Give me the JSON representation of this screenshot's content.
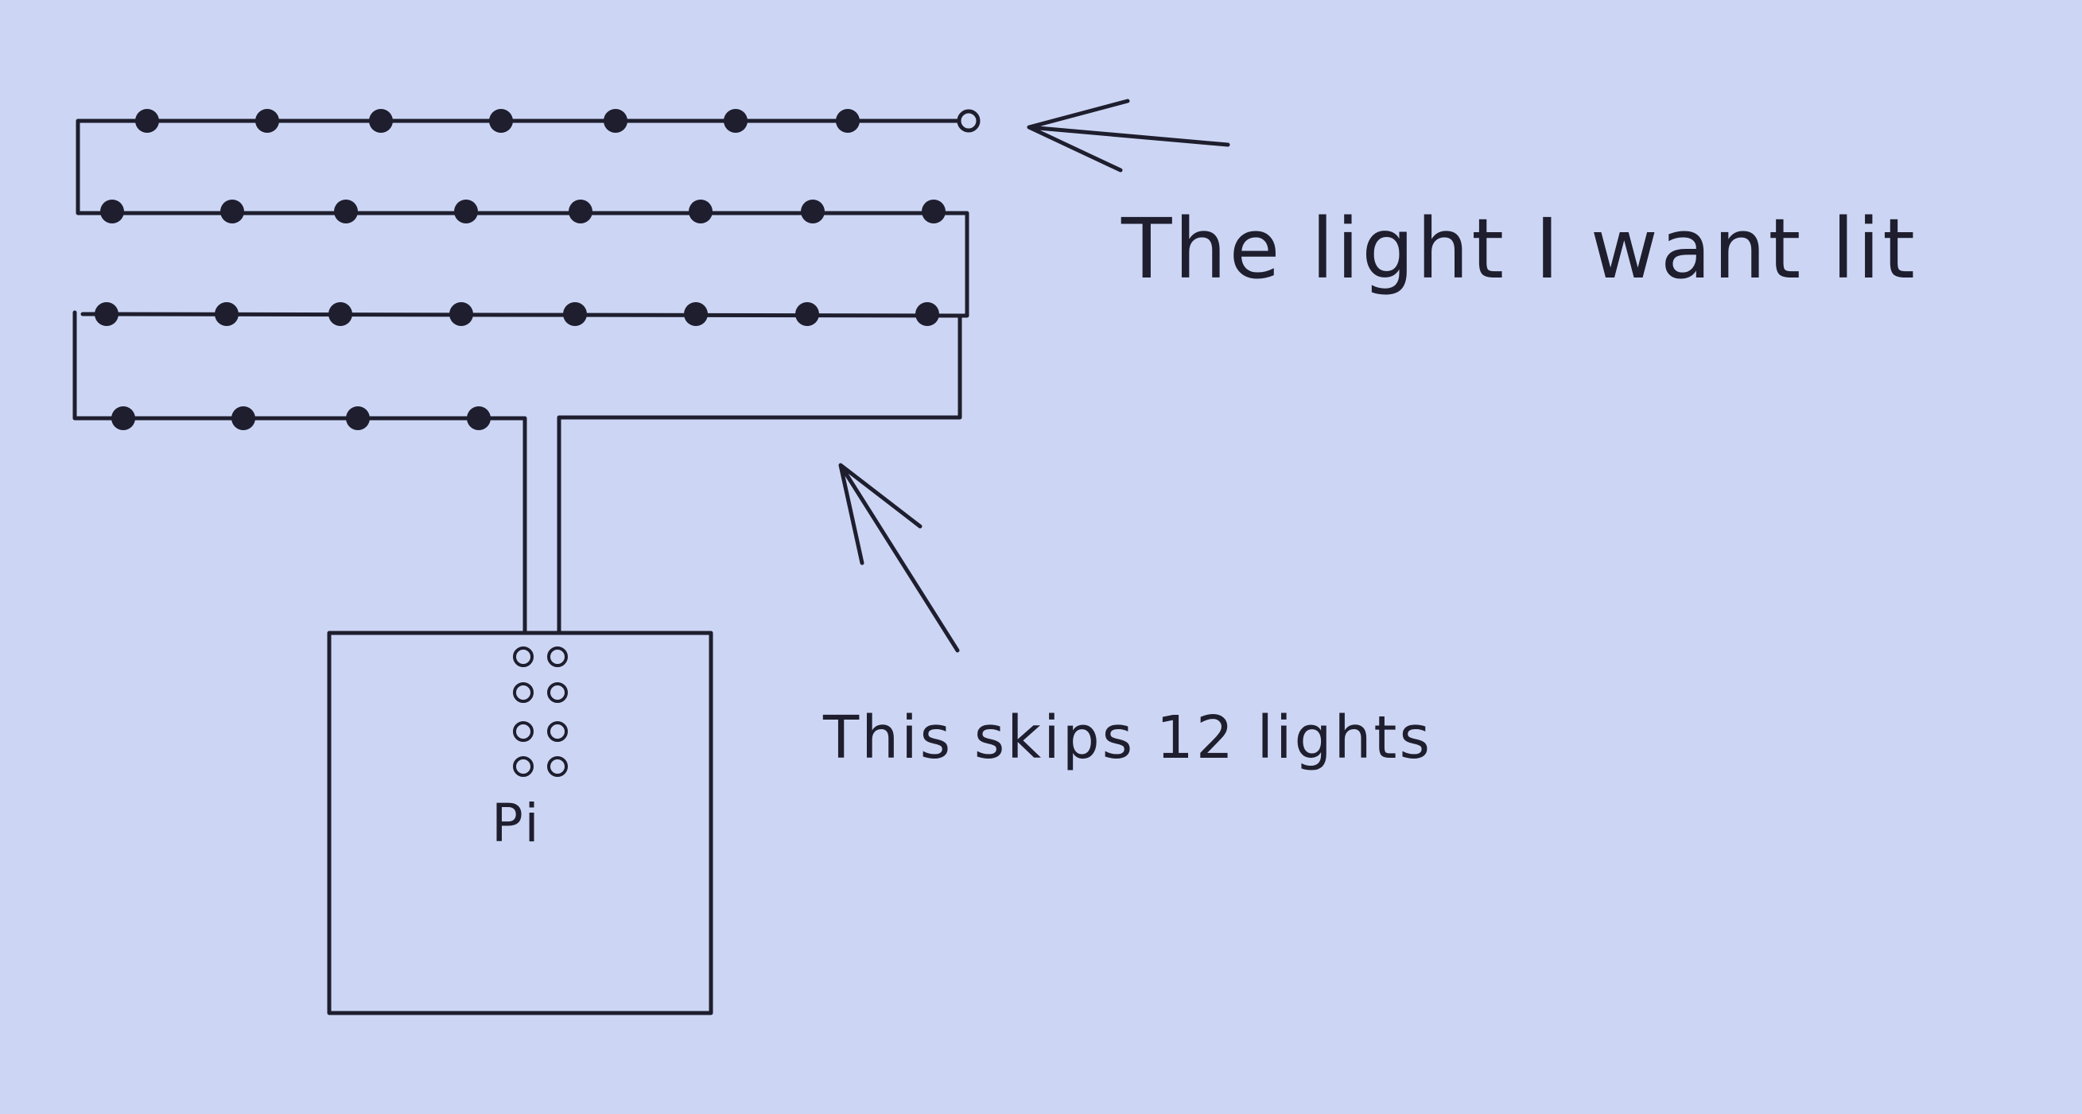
{
  "colors": {
    "background": "#ccd6f4",
    "ink": "#1e1e2e"
  },
  "labels": {
    "target_light": "The light I want lit",
    "skip_note": "This skips 12 lights",
    "pi": "Pi"
  },
  "diagram": {
    "led_rows": [
      {
        "row": 1,
        "lights": 8,
        "unlit_last": true
      },
      {
        "row": 2,
        "lights": 8
      },
      {
        "row": 3,
        "lights": 8
      },
      {
        "row": 4,
        "lights": 4
      }
    ],
    "pi_header_pins": 8
  }
}
